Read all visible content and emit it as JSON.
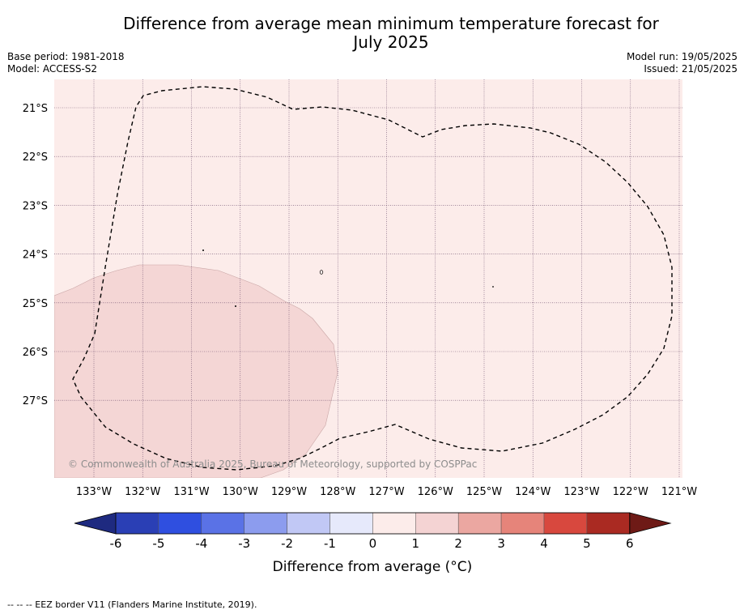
{
  "header": {
    "title_line1": "Difference from average mean minimum temperature forecast for",
    "title_line2": "July 2025",
    "base_period": "Base period: 1981-2018",
    "model": "Model: ACCESS-S2",
    "model_run": "Model run: 19/05/2025",
    "issued": "Issued: 21/05/2025"
  },
  "map": {
    "lon_labels": [
      "133°W",
      "132°W",
      "131°W",
      "130°W",
      "129°W",
      "128°W",
      "127°W",
      "126°W",
      "125°W",
      "124°W",
      "123°W",
      "122°W",
      "121°W"
    ],
    "lat_labels": [
      "21°S",
      "22°S",
      "23°S",
      "24°S",
      "25°S",
      "26°S",
      "27°S"
    ],
    "background_category": "0 to 1",
    "highlight_category": "1 to 2",
    "copyright": "© Commonwealth of Australia 2025, Bureau of Meteorology, supported by COSPPac"
  },
  "colorbar": {
    "label": "Difference from average (°C)",
    "ticks": [
      "-6",
      "-5",
      "-4",
      "-3",
      "-2",
      "-1",
      "0",
      "1",
      "2",
      "3",
      "4",
      "5",
      "6"
    ],
    "colors": [
      "#1e2a80",
      "#2a3fb5",
      "#2f4fe0",
      "#5a72e6",
      "#8c9cee",
      "#c1c8f5",
      "#e6e9fb",
      "#fcecea",
      "#f4d3d3",
      "#eba7a1",
      "#e6847a",
      "#d8483e",
      "#aa2a22",
      "#6e1a16"
    ]
  },
  "legend": {
    "eez": "--  --  -- EEZ border V11 (Flanders Marine Institute, 2019)."
  }
}
